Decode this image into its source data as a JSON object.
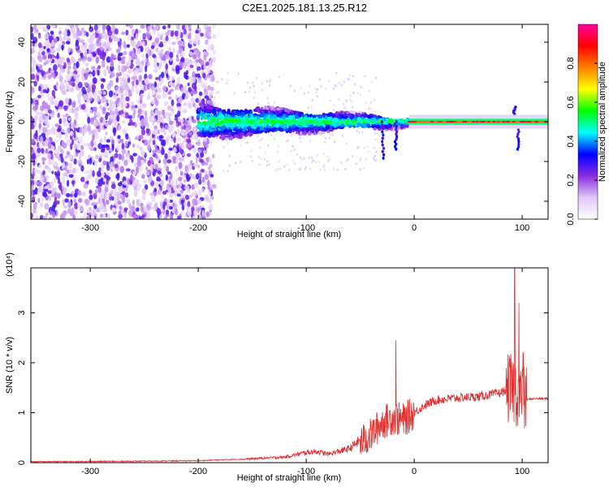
{
  "page": {
    "title": "C2E1.2025.181.13.25.R12"
  },
  "chart_data": [
    {
      "type": "heatmap",
      "title": "C2E1.2025.181.13.25.R12",
      "xlabel": "Height of straight line (km)",
      "ylabel": "Frequency (Hz)",
      "xlim": [
        -355,
        124
      ],
      "ylim": [
        -49,
        49
      ],
      "xticks": [
        -300,
        -200,
        -100,
        0,
        100
      ],
      "yticks": [
        -40,
        -20,
        0,
        20,
        40
      ],
      "colorbar": {
        "label": "Normalized spectral amplitude",
        "range": [
          0.0,
          1.0
        ],
        "ticks": [
          "0.0",
          "0.2",
          "0.4",
          "0.6",
          "0.8"
        ],
        "colors": [
          "#ffffff",
          "#e0c8f8",
          "#8a2be2",
          "#0000ff",
          "#00ffff",
          "#00ff00",
          "#ffff00",
          "#ff8000",
          "#ff0000",
          "#ff00a0"
        ]
      },
      "regions": [
        {
          "x_from": -355,
          "x_to": -185,
          "description_value": 0.25
        },
        {
          "x_from": -200,
          "x_to": -20,
          "center_freq": 0,
          "spread_hz": 8,
          "peak_value": 0.45
        },
        {
          "x_from": -5,
          "x_to": 124,
          "center_freq": 0,
          "peak_value": 0.75
        }
      ]
    },
    {
      "type": "line",
      "xlabel": "Height of straight line (km)",
      "ylabel": "SNR (10 * v/v)",
      "y_multiplier": "(x10⁴)",
      "xlim": [
        -355,
        124
      ],
      "ylim": [
        0,
        3.9
      ],
      "xticks": [
        -300,
        -200,
        -100,
        0,
        100
      ],
      "yticks": [
        0,
        1,
        2,
        3
      ],
      "color": "#e03030",
      "envelope_points": [
        [
          -355,
          0.01
        ],
        [
          -250,
          0.02
        ],
        [
          -200,
          0.03
        ],
        [
          -160,
          0.06
        ],
        [
          -120,
          0.1
        ],
        [
          -100,
          0.18
        ],
        [
          -90,
          0.2
        ],
        [
          -80,
          0.15
        ],
        [
          -60,
          0.25
        ],
        [
          -40,
          0.55
        ],
        [
          -30,
          0.8
        ],
        [
          -20,
          0.9
        ],
        [
          -10,
          0.85
        ],
        [
          0,
          1.0
        ],
        [
          10,
          1.15
        ],
        [
          20,
          1.25
        ],
        [
          40,
          1.3
        ],
        [
          60,
          1.32
        ],
        [
          80,
          1.4
        ],
        [
          90,
          1.5
        ],
        [
          95,
          1.4
        ],
        [
          100,
          1.25
        ],
        [
          110,
          1.28
        ],
        [
          124,
          1.28
        ]
      ],
      "spikes": [
        [
          -17,
          2.45
        ],
        [
          93,
          3.9
        ],
        [
          97,
          3.2
        ],
        [
          101,
          2.2
        ]
      ]
    }
  ]
}
